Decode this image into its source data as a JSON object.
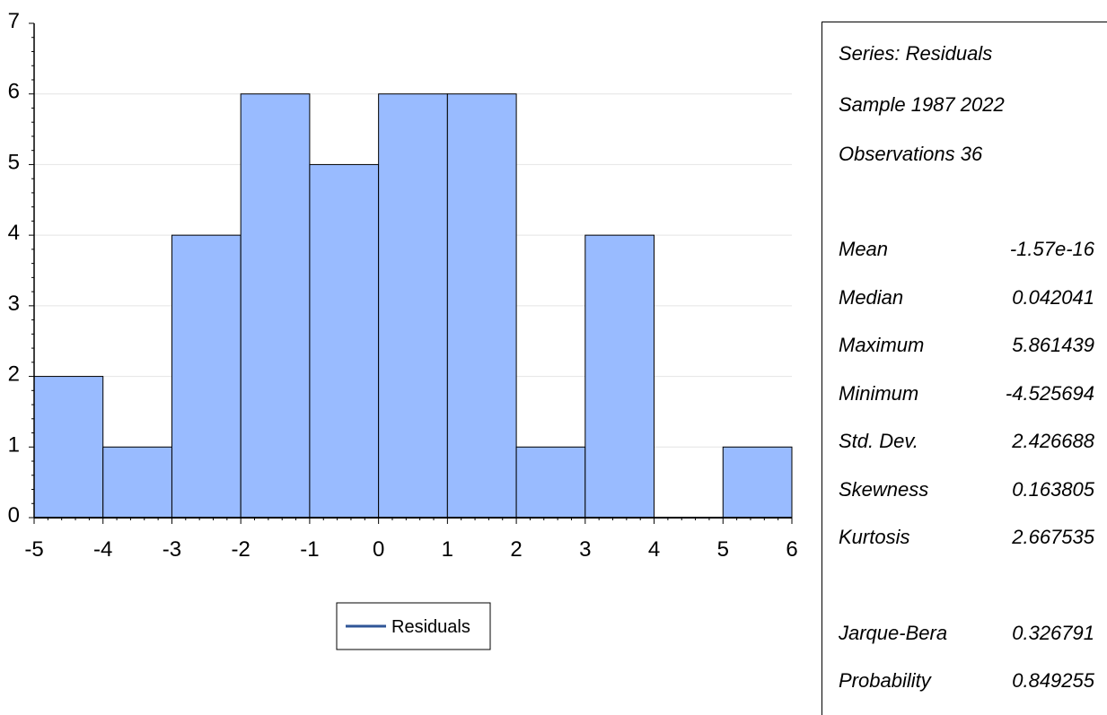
{
  "chart_data": {
    "type": "bar",
    "bin_edges": [
      -5,
      -4,
      -3,
      -2,
      -1,
      0,
      1,
      2,
      3,
      4,
      5,
      6
    ],
    "values": [
      2,
      1,
      4,
      6,
      5,
      6,
      6,
      1,
      4,
      0,
      1
    ],
    "x_ticks": [
      "-5",
      "-4",
      "-3",
      "-2",
      "-1",
      "0",
      "1",
      "2",
      "3",
      "4",
      "5",
      "6"
    ],
    "y_ticks": [
      "0",
      "1",
      "2",
      "3",
      "4",
      "5",
      "6",
      "7"
    ],
    "xlim": [
      -5,
      6
    ],
    "ylim": [
      0,
      7
    ],
    "grid": "horizontal",
    "legend": {
      "label": "Residuals",
      "placement": "bottom-center"
    },
    "colors": {
      "bar_fill": "#99bbff",
      "bar_stroke": "#000000",
      "legend_line": "#2f5597",
      "grid": "#e4e4e4"
    }
  },
  "stats_panel": {
    "header": [
      "Series: Residuals",
      "Sample 1987 2022",
      "Observations 36"
    ],
    "rows": [
      {
        "label": "Mean",
        "value": "-1.57e-16"
      },
      {
        "label": "Median",
        "value": "0.042041"
      },
      {
        "label": "Maximum",
        "value": "5.861439"
      },
      {
        "label": "Minimum",
        "value": "-4.525694"
      },
      {
        "label": "Std. Dev.",
        "value": "2.426688"
      },
      {
        "label": "Skewness",
        "value": "0.163805"
      },
      {
        "label": "Kurtosis",
        "value": "2.667535"
      }
    ],
    "tests": [
      {
        "label": "Jarque-Bera",
        "value": "0.326791"
      },
      {
        "label": "Probability",
        "value": "0.849255"
      }
    ]
  }
}
